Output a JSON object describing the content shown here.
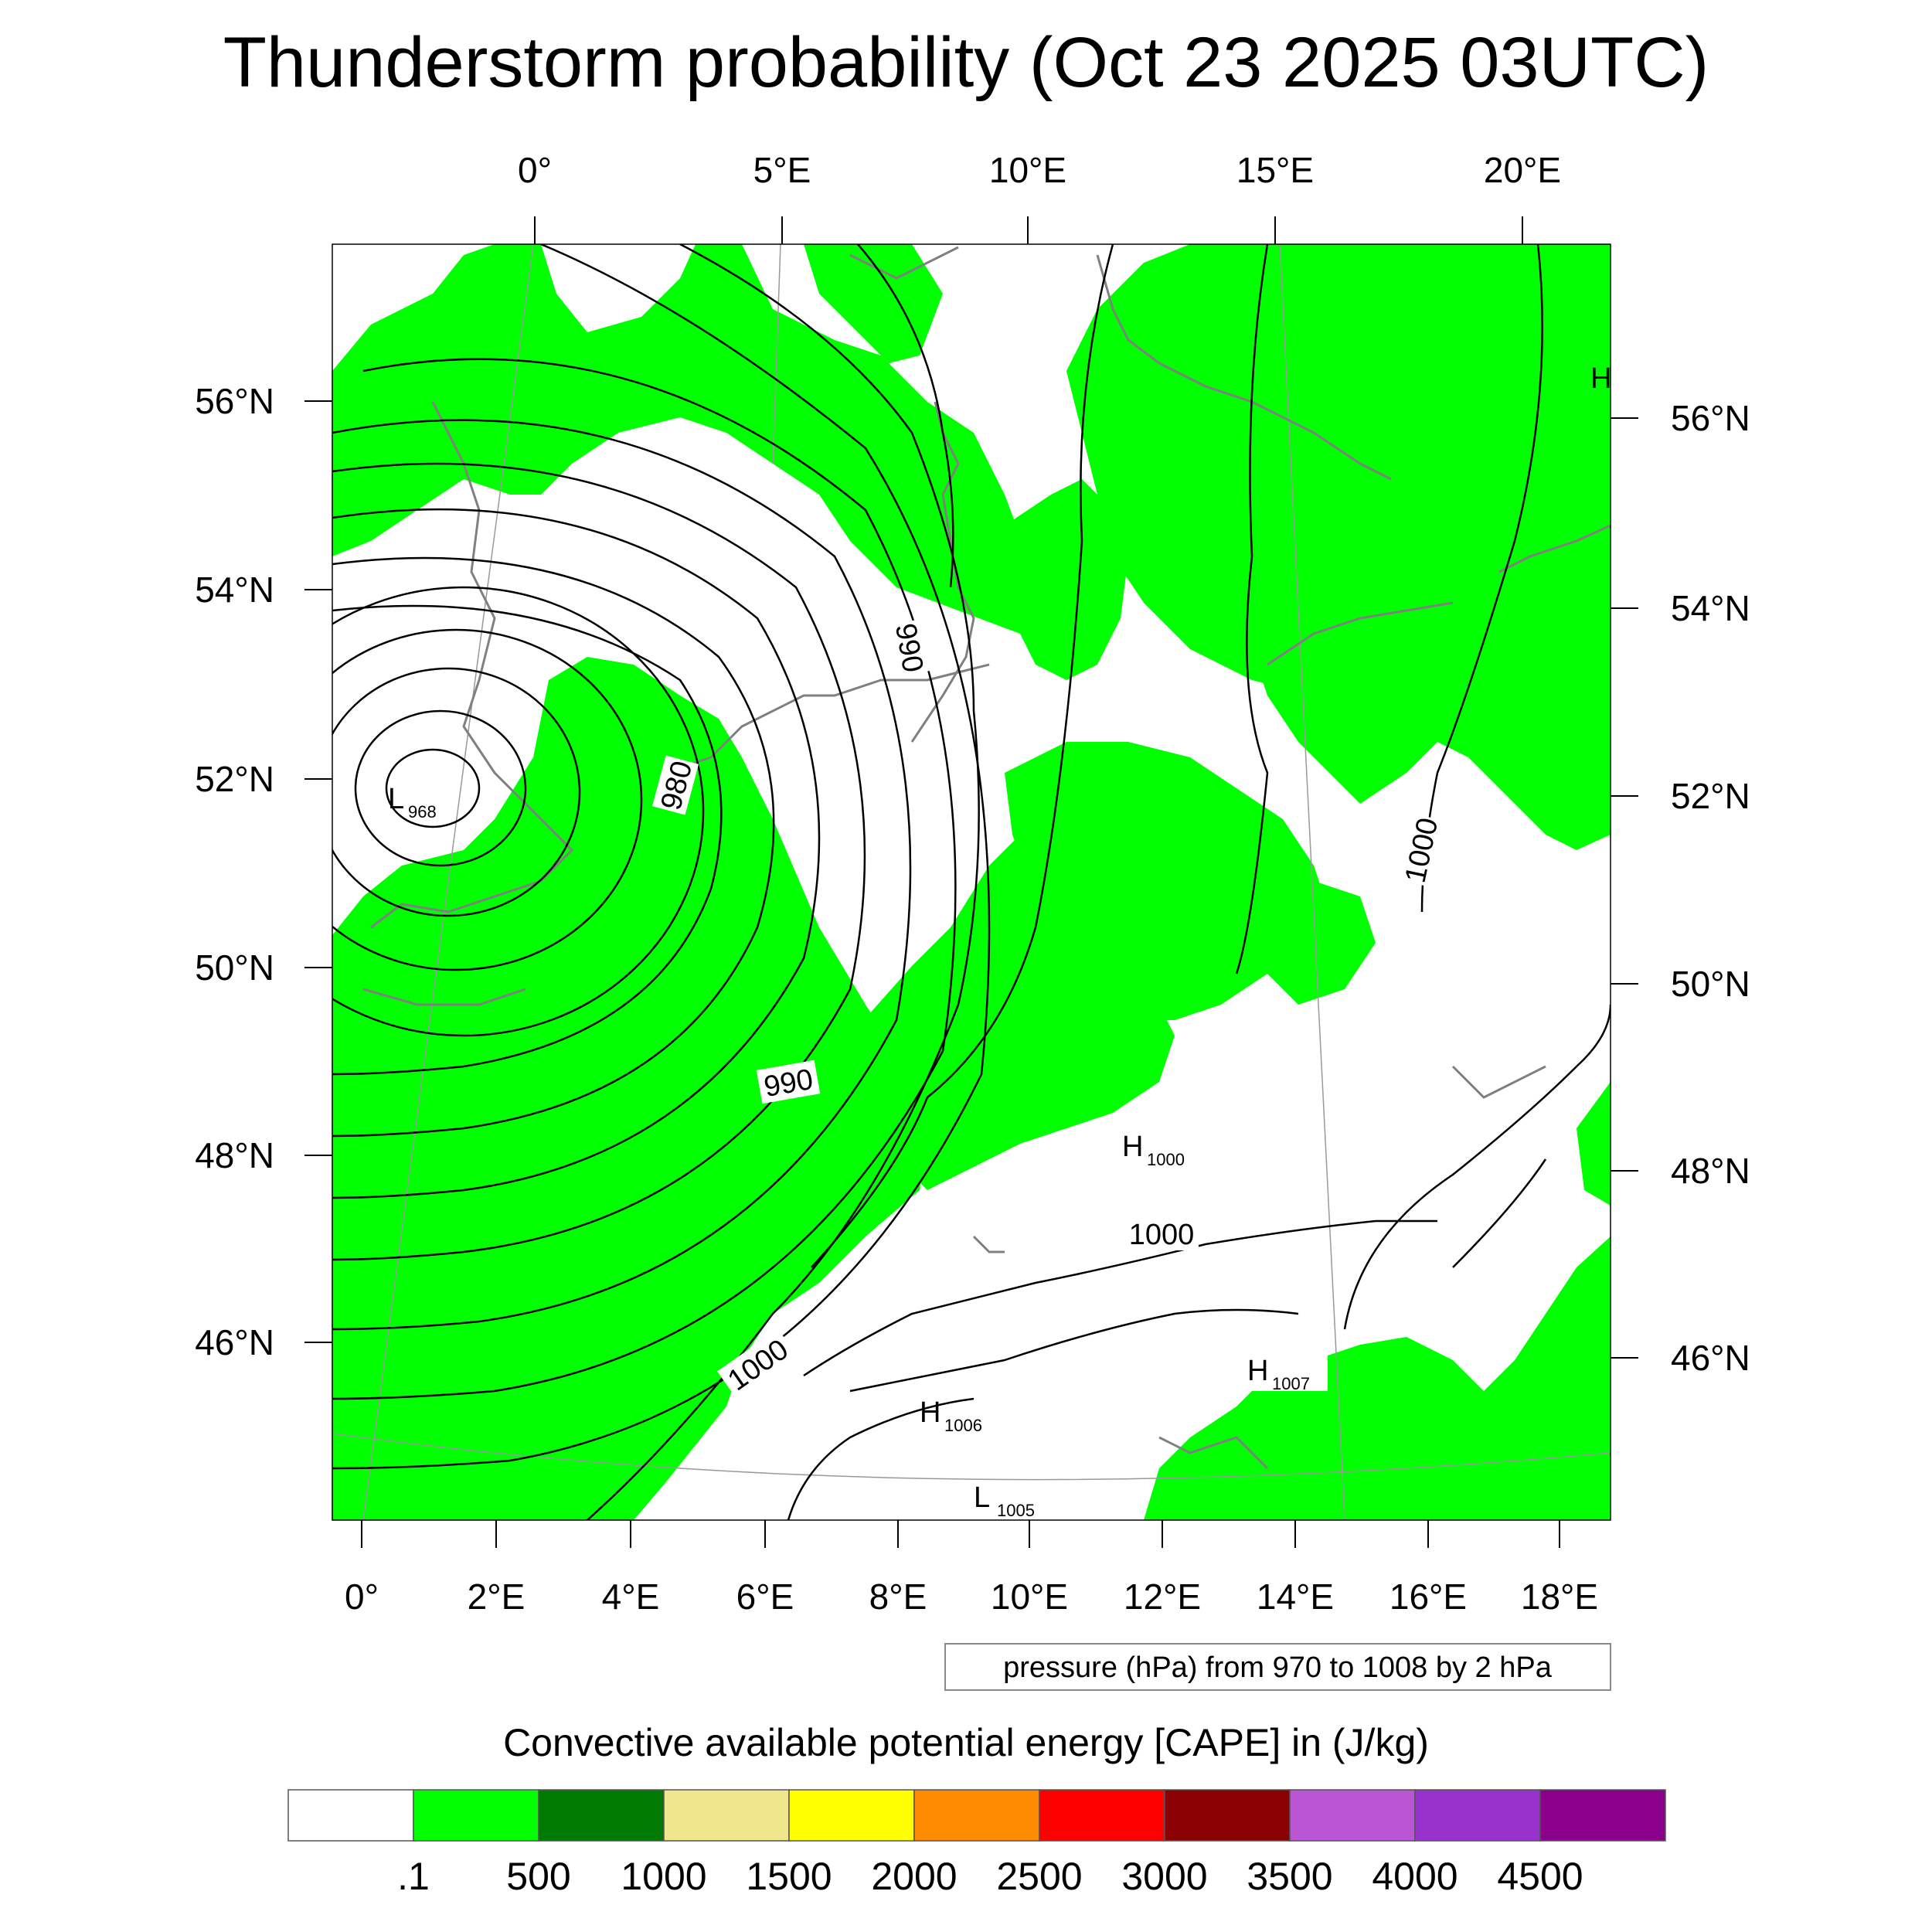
{
  "title": "Thunderstorm probability (Oct 23 2025 03UTC)",
  "top_axis_labels": [
    "0°",
    "5°E",
    "10°E",
    "15°E",
    "20°E"
  ],
  "bottom_axis_labels": [
    "0°",
    "2°E",
    "4°E",
    "6°E",
    "8°E",
    "10°E",
    "12°E",
    "14°E",
    "16°E",
    "18°E"
  ],
  "left_axis_labels": [
    "56°N",
    "54°N",
    "52°N",
    "50°N",
    "48°N",
    "46°N"
  ],
  "right_axis_labels": [
    "56°N",
    "54°N",
    "52°N",
    "50°N",
    "48°N",
    "46°N"
  ],
  "contour_info": "pressure (hPa) from 970 to 1008 by 2 hPa",
  "contour_labels": [
    "990",
    "980",
    "990",
    "1000",
    "1000",
    "1000"
  ],
  "pressure_centers": [
    {
      "letter": "L",
      "value": "968"
    },
    {
      "letter": "H",
      "value": "1000"
    },
    {
      "letter": "H",
      "value": "1007"
    },
    {
      "letter": "H",
      "value": "1006"
    },
    {
      "letter": "L",
      "value": "1005"
    },
    {
      "letter": "H",
      "value": ""
    }
  ],
  "legend": {
    "title": "Convective available potential energy [CAPE] in (J/kg)",
    "colors": [
      "#ffffff",
      "#00ff00",
      "#007a00",
      "#f0e68c",
      "#ffff00",
      "#ff8c00",
      "#ff0000",
      "#8b0000",
      "#ba55d3",
      "#9932cc",
      "#8b008b"
    ],
    "labels": [
      ".1",
      "500",
      "1000",
      "1500",
      "2000",
      "2500",
      "3000",
      "3500",
      "4000",
      "4500"
    ]
  },
  "colors": {
    "cape_fill": "#00ff00",
    "isobar": "#000000",
    "coastline": "#808080",
    "grid": "#999999"
  }
}
